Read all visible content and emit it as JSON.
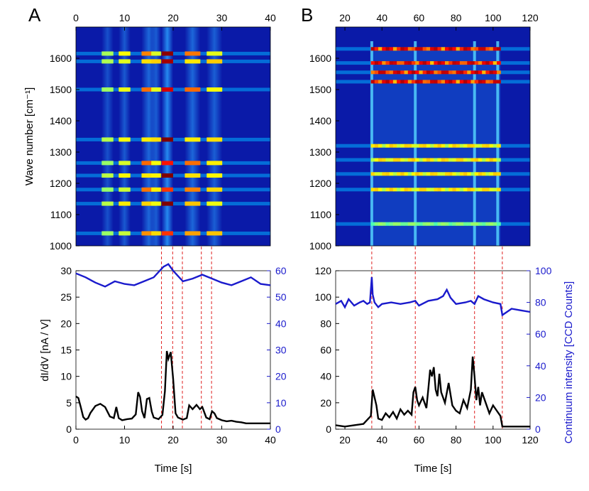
{
  "chart_data": [
    {
      "panel": "A",
      "type": "heatmap",
      "title": "A",
      "xlabel": "",
      "ylabel": "Wave number [cm⁻¹]",
      "xlim": [
        0,
        40
      ],
      "ylim": [
        1000,
        1700
      ],
      "xticks": [
        0,
        10,
        20,
        30,
        40
      ],
      "yticks": [
        1000,
        1100,
        1200,
        1300,
        1400,
        1500,
        1600
      ],
      "peaks": [
        1040,
        1135,
        1180,
        1225,
        1265,
        1340,
        1500,
        1590,
        1615
      ],
      "bright_columns": [
        {
          "t": 10,
          "w": 1.2,
          "a": 0.25
        },
        {
          "t": 15,
          "w": 1.5,
          "a": 0.45
        },
        {
          "t": 16.5,
          "w": 1.0,
          "a": 0.3
        },
        {
          "t": 18.8,
          "w": 1.2,
          "a": 0.95
        },
        {
          "t": 24.0,
          "w": 1.6,
          "a": 0.45
        },
        {
          "t": 28.5,
          "w": 1.6,
          "a": 0.32
        },
        {
          "t": 6.5,
          "w": 1.2,
          "a": 0.12
        }
      ],
      "colormap": "jet"
    },
    {
      "panel": "A-lower",
      "type": "line",
      "xlabel": "Time [s]",
      "ylabel": "dI/dV [nA / V]",
      "ylabel_right": "",
      "xlim": [
        0,
        40
      ],
      "ylim": [
        0,
        30
      ],
      "ylim_right": [
        0,
        60
      ],
      "xticks": [
        0,
        10,
        20,
        30,
        40
      ],
      "yticks": [
        0,
        5,
        10,
        15,
        20,
        25,
        30
      ],
      "yticks_right": [
        0,
        10,
        20,
        30,
        40,
        50,
        60
      ],
      "event_lines": [
        17.6,
        19.9,
        21.9,
        25.8,
        27.9
      ],
      "series": [
        {
          "name": "continuum",
          "color": "#1a1acc",
          "axis": "right",
          "x": [
            0,
            2,
            4,
            6,
            8,
            10,
            12,
            14,
            16,
            18,
            19,
            20,
            22,
            24,
            26,
            28,
            30,
            32,
            34,
            36,
            38,
            40
          ],
          "y": [
            59,
            57.5,
            55.5,
            54,
            56,
            55,
            54.5,
            56,
            57.5,
            61.5,
            62.5,
            60,
            56,
            57,
            58.5,
            57,
            55.5,
            54.5,
            56,
            57.5,
            55,
            54.5
          ]
        },
        {
          "name": "dI/dV",
          "color": "#000000",
          "axis": "left",
          "x": [
            0,
            0.5,
            1,
            1.5,
            2,
            2.5,
            3,
            4,
            5,
            6,
            7,
            7.8,
            8.3,
            8.8,
            9.5,
            10.5,
            11.5,
            12.3,
            12.8,
            13.2,
            13.6,
            14.1,
            14.6,
            15.1,
            15.6,
            16,
            17,
            17.8,
            18.3,
            18.7,
            19,
            19.5,
            20,
            20.5,
            21,
            22,
            22.8,
            23.3,
            24,
            24.8,
            25.5,
            26,
            26.8,
            27.5,
            28,
            28.5,
            29,
            30,
            31,
            32,
            33,
            34,
            35,
            40
          ],
          "y": [
            6.2,
            5.9,
            4.2,
            2.3,
            1.8,
            2.1,
            3.1,
            4.4,
            4.8,
            4.2,
            2.4,
            2.1,
            4.2,
            2.1,
            1.7,
            1.9,
            2.0,
            2.8,
            7.0,
            6.1,
            3.4,
            2.1,
            5.7,
            5.9,
            3.3,
            2.2,
            1.9,
            2.7,
            7.2,
            14.8,
            13.3,
            14.6,
            9.5,
            3.0,
            2.2,
            1.8,
            2.1,
            4.5,
            3.8,
            4.6,
            3.8,
            4.2,
            2.2,
            1.9,
            3.4,
            3.0,
            2.1,
            1.7,
            1.5,
            1.6,
            1.4,
            1.3,
            1.1,
            1.1
          ]
        }
      ]
    },
    {
      "panel": "B",
      "type": "heatmap",
      "title": "B",
      "xlabel": "",
      "ylabel": "",
      "xlim": [
        15,
        120
      ],
      "ylim": [
        1000,
        1700
      ],
      "xticks": [
        20,
        40,
        60,
        80,
        100,
        120
      ],
      "yticks": [
        1000,
        1100,
        1200,
        1300,
        1400,
        1500,
        1600
      ],
      "peaks": [
        1070,
        1180,
        1230,
        1275,
        1320,
        1525,
        1555,
        1585,
        1630
      ],
      "active_range": [
        34,
        104
      ],
      "colormap": "jet"
    },
    {
      "panel": "B-lower",
      "type": "line",
      "xlabel": "Time [s]",
      "ylabel": "",
      "ylabel_right": "Continuum intensity [CCD Counts]",
      "xlim": [
        15,
        120
      ],
      "ylim": [
        0,
        120
      ],
      "ylim_right": [
        0,
        100
      ],
      "xticks": [
        20,
        40,
        60,
        80,
        100,
        120
      ],
      "yticks": [
        0,
        20,
        40,
        60,
        80,
        100,
        120
      ],
      "yticks_right": [
        0,
        20,
        40,
        60,
        80,
        100
      ],
      "event_lines": [
        34.5,
        58,
        90,
        105
      ],
      "series": [
        {
          "name": "continuum",
          "color": "#1a1acc",
          "axis": "right",
          "x": [
            15,
            18,
            20,
            22,
            25,
            28,
            30,
            32,
            33.5,
            34.5,
            35,
            36,
            38,
            40,
            45,
            50,
            55,
            58,
            60,
            65,
            70,
            73,
            75,
            77,
            80,
            85,
            88,
            90,
            92,
            95,
            100,
            104,
            105,
            110,
            115,
            120
          ],
          "y": [
            79,
            81,
            77,
            82,
            78,
            80,
            81,
            79,
            80,
            96,
            85,
            80,
            77,
            79,
            80,
            79,
            80,
            81,
            78,
            81,
            82,
            84,
            88,
            83,
            79,
            80,
            81,
            79,
            84,
            82,
            80,
            79,
            72,
            76,
            75,
            74
          ]
        },
        {
          "name": "dI/dV",
          "color": "#000000",
          "axis": "left",
          "x": [
            15,
            20,
            25,
            30,
            34,
            35,
            36,
            37,
            38,
            40,
            42,
            44,
            46,
            48,
            50,
            52,
            54,
            56,
            57,
            58,
            59,
            60,
            62,
            64,
            65,
            66,
            67,
            68,
            69,
            70,
            71,
            72,
            74,
            76,
            78,
            80,
            82,
            84,
            86,
            88,
            89,
            90,
            91,
            92,
            93,
            94,
            96,
            98,
            100,
            102,
            104,
            105,
            110,
            120
          ],
          "y": [
            3,
            2,
            3,
            4,
            10,
            30,
            24,
            18,
            8,
            7,
            12,
            9,
            13,
            8,
            15,
            11,
            14,
            11,
            28,
            32,
            22,
            18,
            24,
            16,
            30,
            45,
            40,
            47,
            30,
            25,
            42,
            28,
            20,
            35,
            18,
            14,
            12,
            22,
            16,
            30,
            55,
            40,
            22,
            32,
            18,
            28,
            20,
            12,
            18,
            14,
            10,
            2,
            2,
            2
          ]
        }
      ]
    }
  ]
}
